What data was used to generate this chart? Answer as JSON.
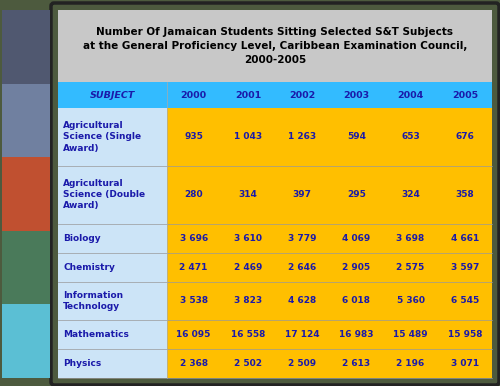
{
  "title_line1": "Number Of Jamaican Students Sitting Selected S&T Subjects",
  "title_line2": "at the General Proficiency Level, Caribbean Examination Council,",
  "title_line3": "2000-2005",
  "title_bg": "#c8c8c8",
  "title_text_color": "#000000",
  "header_bg": "#33bbff",
  "header_text_color": "#1a1aaa",
  "subject_col_bg": "#cce4f7",
  "data_col_bg": "#ffbf00",
  "subject_text_color": "#1a1aaa",
  "data_text_color": "#1a1aaa",
  "outer_bg": "#4d5a3e",
  "border_color": "#222222",
  "columns": [
    "SUBJECT",
    "2000",
    "2001",
    "2002",
    "2003",
    "2004",
    "2005"
  ],
  "rows": [
    [
      "Agricultural\nScience (Single\nAward)",
      "935",
      "1 043",
      "1 263",
      "594",
      "653",
      "676"
    ],
    [
      "Agricultural\nScience (Double\nAward)",
      "280",
      "314",
      "397",
      "295",
      "324",
      "358"
    ],
    [
      "Biology",
      "3 696",
      "3 610",
      "3 779",
      "4 069",
      "3 698",
      "4 661"
    ],
    [
      "Chemistry",
      "2 471",
      "2 469",
      "2 646",
      "2 905",
      "2 575",
      "3 597"
    ],
    [
      "Information\nTechnology",
      "3 538",
      "3 823",
      "4 628",
      "6 018",
      "5 360",
      "6 545"
    ],
    [
      "Mathematics",
      "16 095",
      "16 558",
      "17 124",
      "16 983",
      "15 489",
      "15 958"
    ],
    [
      "Physics",
      "2 368",
      "2 502",
      "2 509",
      "2 613",
      "2 196",
      "3 071"
    ]
  ],
  "figsize": [
    5.0,
    3.86
  ],
  "dpi": 100
}
